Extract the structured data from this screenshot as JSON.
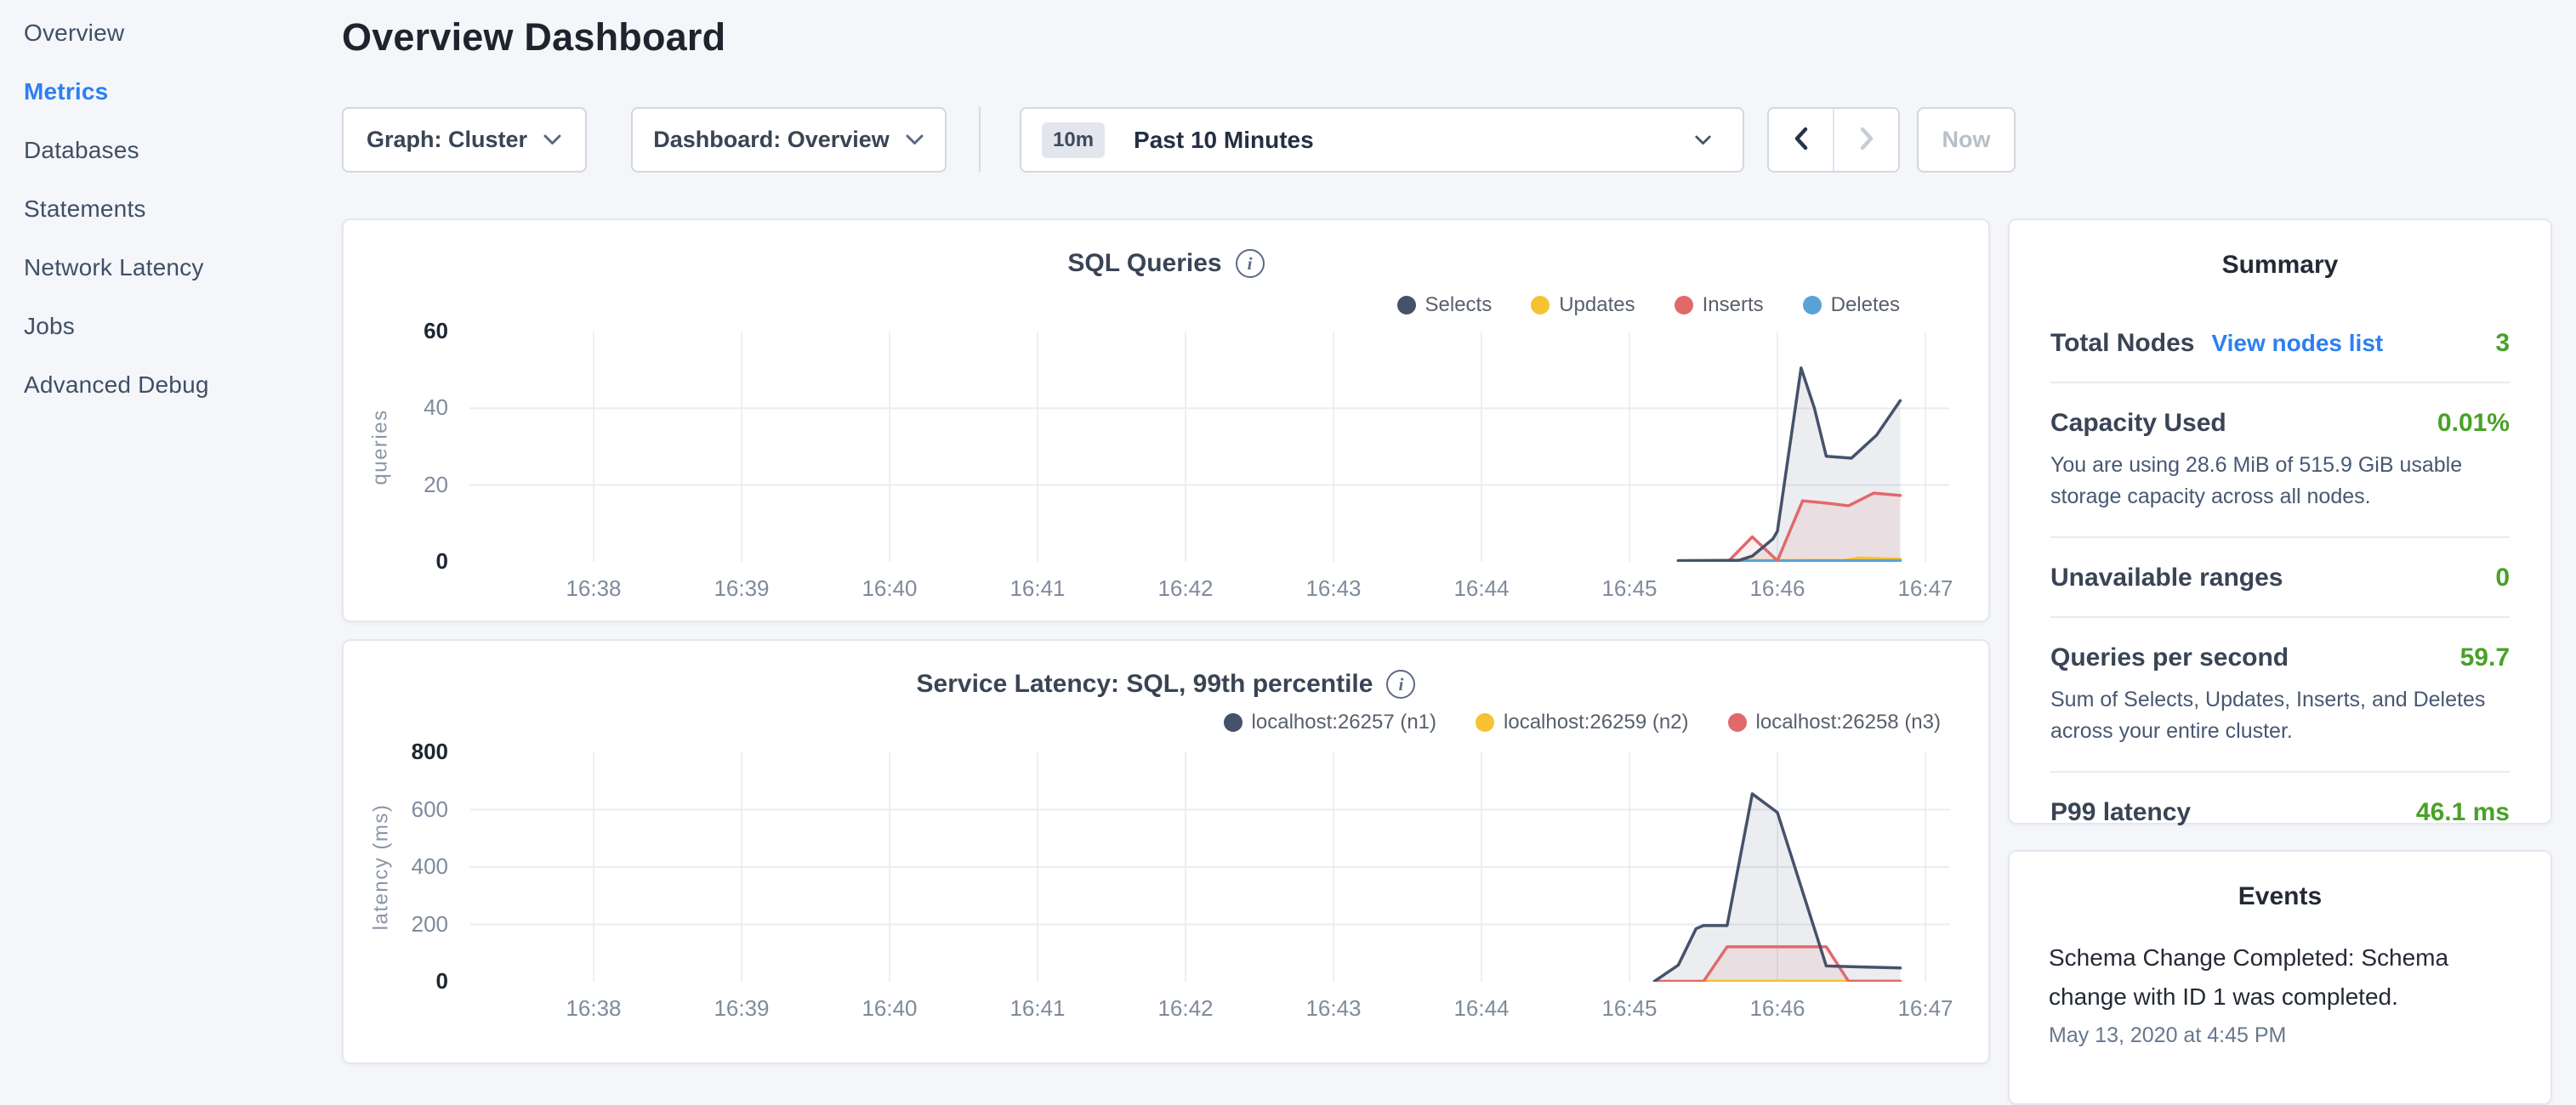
{
  "sidebar": {
    "items": [
      {
        "label": "Overview",
        "active": false
      },
      {
        "label": "Metrics",
        "active": true
      },
      {
        "label": "Databases",
        "active": false
      },
      {
        "label": "Statements",
        "active": false
      },
      {
        "label": "Network Latency",
        "active": false
      },
      {
        "label": "Jobs",
        "active": false
      },
      {
        "label": "Advanced Debug",
        "active": false
      }
    ]
  },
  "header": {
    "title": "Overview Dashboard"
  },
  "toolbar": {
    "graph_dropdown": "Graph: Cluster",
    "dashboard_dropdown": "Dashboard: Overview",
    "time_badge": "10m",
    "time_label": "Past 10 Minutes",
    "now_label": "Now"
  },
  "summary": {
    "title": "Summary",
    "rows": [
      {
        "label": "Total Nodes",
        "link": "View nodes list",
        "value": "3",
        "desc": ""
      },
      {
        "label": "Capacity Used",
        "link": "",
        "value": "0.01%",
        "desc": "You are using 28.6 MiB of 515.9 GiB usable storage capacity across all nodes."
      },
      {
        "label": "Unavailable ranges",
        "link": "",
        "value": "0",
        "desc": ""
      },
      {
        "label": "Queries per second",
        "link": "",
        "value": "59.7",
        "desc": "Sum of Selects, Updates, Inserts, and Deletes across your entire cluster."
      },
      {
        "label": "P99 latency",
        "link": "",
        "value": "46.1 ms",
        "desc": ""
      }
    ]
  },
  "events": {
    "title": "Events",
    "items": [
      {
        "message": "Schema Change Completed: Schema change with ID 1 was completed.",
        "timestamp": "May 13, 2020 at 4:45 PM"
      }
    ]
  },
  "colors": {
    "accent_blue": "#2d7ff2",
    "status_green": "#49a128",
    "series_navy": "#45526b",
    "series_yellow": "#f6c231",
    "series_red": "#e2696b",
    "series_blue": "#59a2d8",
    "grid_line": "#edeff3"
  },
  "chart_data": [
    {
      "type": "area",
      "title": "SQL Queries",
      "ylabel": "queries",
      "ylim": [
        0,
        60
      ],
      "yticks": [
        0,
        20,
        40,
        60
      ],
      "ytick_strong": [
        0,
        60
      ],
      "grid_values": [
        20,
        40
      ],
      "xtick_labels": [
        "16:38",
        "16:39",
        "16:40",
        "16:41",
        "16:42",
        "16:43",
        "16:44",
        "16:45",
        "16:46",
        "16:47"
      ],
      "xtick_minutes": [
        38,
        39,
        40,
        41,
        42,
        43,
        44,
        45,
        46,
        47
      ],
      "legend_position": "top-right",
      "legend": [
        {
          "label": "Selects",
          "color": "#45526b"
        },
        {
          "label": "Updates",
          "color": "#f6c231"
        },
        {
          "label": "Inserts",
          "color": "#e2696b"
        },
        {
          "label": "Deletes",
          "color": "#59a2d8"
        }
      ],
      "series": [
        {
          "name": "Updates",
          "color": "#f6c231",
          "fill": "none",
          "points": [
            [
              45.33,
              0.3
            ],
            [
              46.45,
              0.4
            ],
            [
              46.55,
              1.0
            ],
            [
              46.83,
              0.7
            ]
          ]
        },
        {
          "name": "Deletes",
          "color": "#59a2d8",
          "fill": "none",
          "points": [
            [
              45.33,
              0.2
            ],
            [
              46.83,
              0.3
            ]
          ]
        },
        {
          "name": "Inserts",
          "color": "#e2696b",
          "fill": "rgba(226,105,107,0.10)",
          "points": [
            [
              45.67,
              0.2
            ],
            [
              45.83,
              6.5
            ],
            [
              46.0,
              0.3
            ],
            [
              46.17,
              15.9
            ],
            [
              46.33,
              15.3
            ],
            [
              46.48,
              14.6
            ],
            [
              46.65,
              17.9
            ],
            [
              46.83,
              17.3
            ]
          ]
        },
        {
          "name": "Selects",
          "color": "#45526b",
          "fill": "rgba(69,82,107,0.10)",
          "points": [
            [
              45.33,
              0.3
            ],
            [
              45.74,
              0.4
            ],
            [
              45.83,
              1.5
            ],
            [
              45.97,
              6
            ],
            [
              46.0,
              8
            ],
            [
              46.16,
              50.5
            ],
            [
              46.25,
              40
            ],
            [
              46.33,
              27.5
            ],
            [
              46.5,
              27
            ],
            [
              46.67,
              33
            ],
            [
              46.83,
              42
            ]
          ]
        }
      ]
    },
    {
      "type": "area",
      "title": "Service Latency: SQL, 99th percentile",
      "ylabel": "latency (ms)",
      "ylim": [
        0,
        800
      ],
      "yticks": [
        0,
        200,
        400,
        600,
        800
      ],
      "ytick_strong": [
        0,
        800
      ],
      "grid_values": [
        200,
        400,
        600
      ],
      "xtick_labels": [
        "16:38",
        "16:39",
        "16:40",
        "16:41",
        "16:42",
        "16:43",
        "16:44",
        "16:45",
        "16:46",
        "16:47"
      ],
      "xtick_minutes": [
        38,
        39,
        40,
        41,
        42,
        43,
        44,
        45,
        46,
        47
      ],
      "legend_position": "top-right",
      "legend": [
        {
          "label": "localhost:26257 (n1)",
          "color": "#45526b"
        },
        {
          "label": "localhost:26259 (n2)",
          "color": "#f6c231"
        },
        {
          "label": "localhost:26258 (n3)",
          "color": "#e2696b"
        }
      ],
      "series": [
        {
          "name": "localhost:26259 (n2)",
          "color": "#f6c231",
          "fill": "none",
          "points": [
            [
              45.17,
              2
            ],
            [
              46.83,
              2
            ]
          ]
        },
        {
          "name": "localhost:26258 (n3)",
          "color": "#e2696b",
          "fill": "rgba(226,105,107,0.10)",
          "points": [
            [
              45.17,
              1
            ],
            [
              45.5,
              1
            ],
            [
              45.66,
              122
            ],
            [
              46.33,
              122
            ],
            [
              46.48,
              2
            ],
            [
              46.83,
              2
            ]
          ]
        },
        {
          "name": "localhost:26257 (n1)",
          "color": "#45526b",
          "fill": "rgba(69,82,107,0.10)",
          "points": [
            [
              45.17,
              2
            ],
            [
              45.33,
              58
            ],
            [
              45.45,
              185
            ],
            [
              45.5,
              196
            ],
            [
              45.66,
              196
            ],
            [
              45.83,
              655
            ],
            [
              46.0,
              590
            ],
            [
              46.33,
              55
            ],
            [
              46.55,
              52
            ],
            [
              46.83,
              48
            ]
          ]
        }
      ]
    }
  ]
}
